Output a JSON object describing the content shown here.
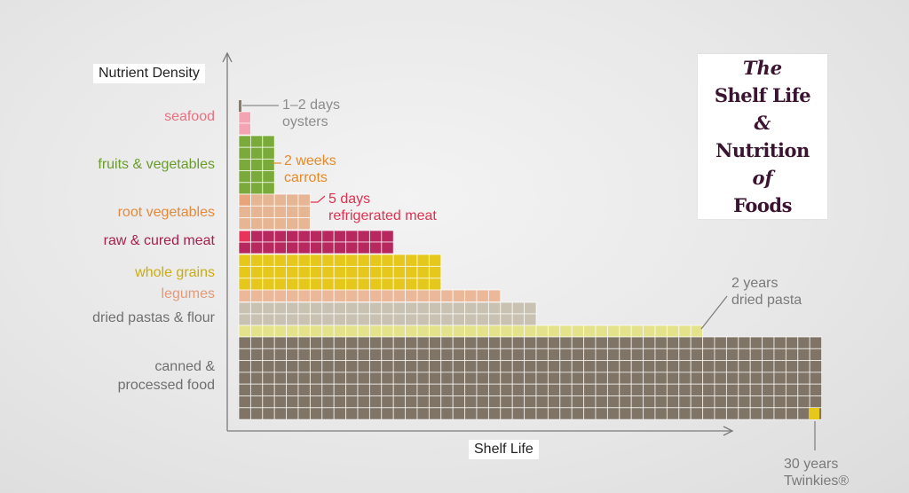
{
  "title_card": {
    "line1": "The",
    "line2": "Shelf Life",
    "line3": "&",
    "line4": "Nutrition",
    "line5": "of",
    "line6": "Foods"
  },
  "colors": {
    "text_title": "#3a1430",
    "axis": "#7a7a7a",
    "grid_line": "#ffffff"
  },
  "chart_data": {
    "type": "bar",
    "orientation": "horizontal",
    "title": "The Shelf Life & Nutrition of Foods",
    "xlabel": "Shelf Life",
    "ylabel": "Nutrient Density",
    "grid": true,
    "categories": [
      "seafood",
      "fruits & vegetables",
      "root vegetables",
      "raw & cured meat",
      "whole grains",
      "legumes",
      "dried pastas & flour",
      "canned & processed food"
    ],
    "series": [
      {
        "category": "seafood",
        "color": "#f4a3b3",
        "label_color": "#e8707f"
      },
      {
        "category": "fruits & vegetables",
        "color": "#7aab3a",
        "label_color": "#6a9b2c"
      },
      {
        "category": "root vegetables",
        "color": "#e5b594",
        "label_color": "#e48a3a"
      },
      {
        "category": "raw & cured meat",
        "color": "#b7285e",
        "label_color": "#a6204f"
      },
      {
        "category": "whole grains",
        "color": "#e6c81d",
        "label_color": "#c9ac10"
      },
      {
        "category": "legumes",
        "color": "#ebb89a",
        "label_color": "#e39a78"
      },
      {
        "category": "dried pastas & flour",
        "color": "#c9c2b2",
        "label_color": "#6f6f6f"
      },
      {
        "category": "canned & processed food",
        "color": "#7f7465",
        "label_color": "#6f6f6f"
      }
    ],
    "highlights": [
      {
        "color": "#8a7a68",
        "note": "oysters"
      },
      {
        "color": "#e8a47a",
        "note": "carrots"
      },
      {
        "color": "#e8345a",
        "note": "refrigerated meat"
      },
      {
        "color": "#e4e28a",
        "note": "dried pasta"
      },
      {
        "color": "#e6c81d",
        "note": "Twinkies"
      }
    ],
    "annotations": [
      {
        "line1": "1–2 days",
        "line2": "oysters",
        "color": "#8c8c8c"
      },
      {
        "line1": "2 weeks",
        "line2": "carrots",
        "color": "#e48a2a"
      },
      {
        "line1": "5 days",
        "line2": "refrigerated meat",
        "color": "#e03050"
      },
      {
        "line1": "2 years",
        "line2": "dried pasta",
        "color": "#7a7a7a"
      },
      {
        "line1": "30 years",
        "line2": "Twinkies®",
        "color": "#7a7a7a"
      }
    ]
  },
  "labels": {
    "y_axis": "Nutrient Density",
    "x_axis": "Shelf Life",
    "canned_line1": "canned &",
    "canned_line2": "processed food"
  }
}
